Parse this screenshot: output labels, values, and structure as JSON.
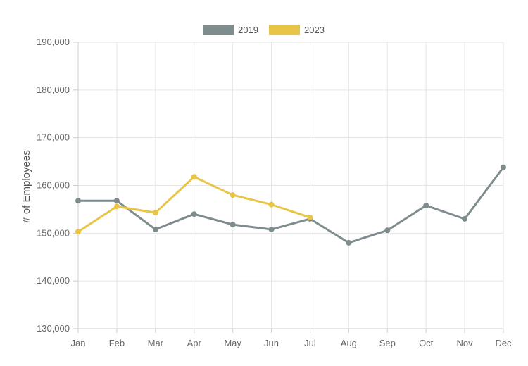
{
  "chart_data": {
    "type": "line",
    "categories": [
      "Jan",
      "Feb",
      "Mar",
      "Apr",
      "May",
      "Jun",
      "Jul",
      "Aug",
      "Sep",
      "Oct",
      "Nov",
      "Dec"
    ],
    "series": [
      {
        "name": "2019",
        "color": "#7f8c8d",
        "values": [
          156800,
          156800,
          150800,
          154000,
          151800,
          150800,
          153000,
          148000,
          150600,
          155800,
          153000,
          163800
        ]
      },
      {
        "name": "2023",
        "color": "#e8c547",
        "values": [
          150300,
          155600,
          154300,
          161800,
          158000,
          156000,
          153300,
          null,
          null,
          null,
          null,
          null
        ]
      }
    ],
    "ylabel": "# of Employees",
    "ylim": [
      130000,
      190000
    ],
    "yticks": [
      130000,
      140000,
      150000,
      160000,
      170000,
      180000,
      190000
    ],
    "ytick_labels": [
      "130,000",
      "140,000",
      "150,000",
      "160,000",
      "170,000",
      "180,000",
      "190,000"
    ],
    "grid": true,
    "legend": "top-center"
  }
}
